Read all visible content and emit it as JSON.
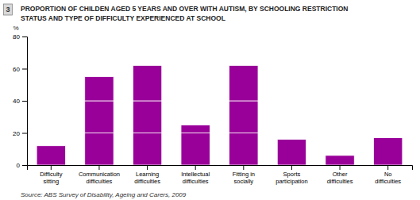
{
  "chart_data": {
    "type": "bar",
    "stacked": true,
    "title": "PROPORTION OF CHILDEN AGED 5 YEARS AND OVER WITH AUTISM, BY SCHOOLING RESTRICTION\nSTATUS AND TYPE OF DIFFICULTY EXPERIENCED AT SCHOOL",
    "categories": [
      "Difficulty\nsitting",
      "Communication\ndifficulties",
      "Learning\ndifficulties",
      "Intellectual\ndifficulties",
      "Fitting in\nsocially",
      "Sports\nparticipation",
      "Other\ndifficulties",
      "No\ndifficulties"
    ],
    "series": [
      {
        "color": "#990099",
        "values": [
          12,
          20,
          20,
          20,
          20,
          16,
          6,
          17
        ]
      },
      {
        "color": "#990099",
        "values": [
          0,
          20,
          20,
          5,
          20,
          0,
          0,
          0
        ]
      },
      {
        "color": "#990099",
        "values": [
          0,
          15,
          22,
          0,
          22,
          0,
          0,
          0
        ]
      }
    ],
    "ylabel": "%",
    "ylim": [
      0,
      80
    ],
    "yticks": [
      0,
      20,
      40,
      60,
      80
    ],
    "annotations": [
      "3",
      "Source: ABS Survey of Disability, Ageing and Carers, 2009"
    ]
  }
}
